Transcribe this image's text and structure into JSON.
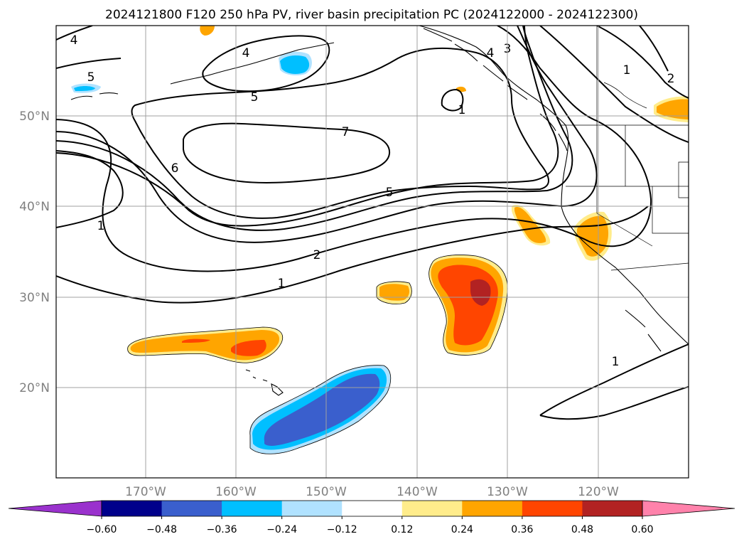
{
  "title": "2024121800 F120 250 hPa PV, river basin precipitation PC (2024122000 - 2024122300)",
  "map": {
    "lon_range": [
      -180,
      -110
    ],
    "lat_range": [
      10,
      60
    ],
    "lat_ticks": [
      "50°N",
      "40°N",
      "30°N",
      "20°N"
    ],
    "lon_ticks": [
      "170°W",
      "160°W",
      "150°W",
      "140°W",
      "130°W",
      "120°W"
    ],
    "grid": true
  },
  "colorbar": {
    "ticks": [
      "−0.60",
      "−0.48",
      "−0.36",
      "−0.24",
      "−0.12",
      "0.12",
      "0.24",
      "0.36",
      "0.48",
      "0.60"
    ],
    "colors": [
      "#9a32cd",
      "#00008b",
      "#3a5fcd",
      "#00bfff",
      "#b0e2ff",
      "#ffffff",
      "#ffec8b",
      "#ffa500",
      "#ff4500",
      "#b22222",
      "#ff82ab"
    ]
  },
  "contour_labels": [
    {
      "text": "4"
    },
    {
      "text": "5"
    },
    {
      "text": "4"
    },
    {
      "text": "5"
    },
    {
      "text": "7"
    },
    {
      "text": "6"
    },
    {
      "text": "5"
    },
    {
      "text": "2"
    },
    {
      "text": "1"
    },
    {
      "text": "1"
    },
    {
      "text": "1"
    },
    {
      "text": "2"
    },
    {
      "text": "1"
    },
    {
      "text": "3"
    },
    {
      "text": "4"
    },
    {
      "text": "1"
    }
  ]
}
